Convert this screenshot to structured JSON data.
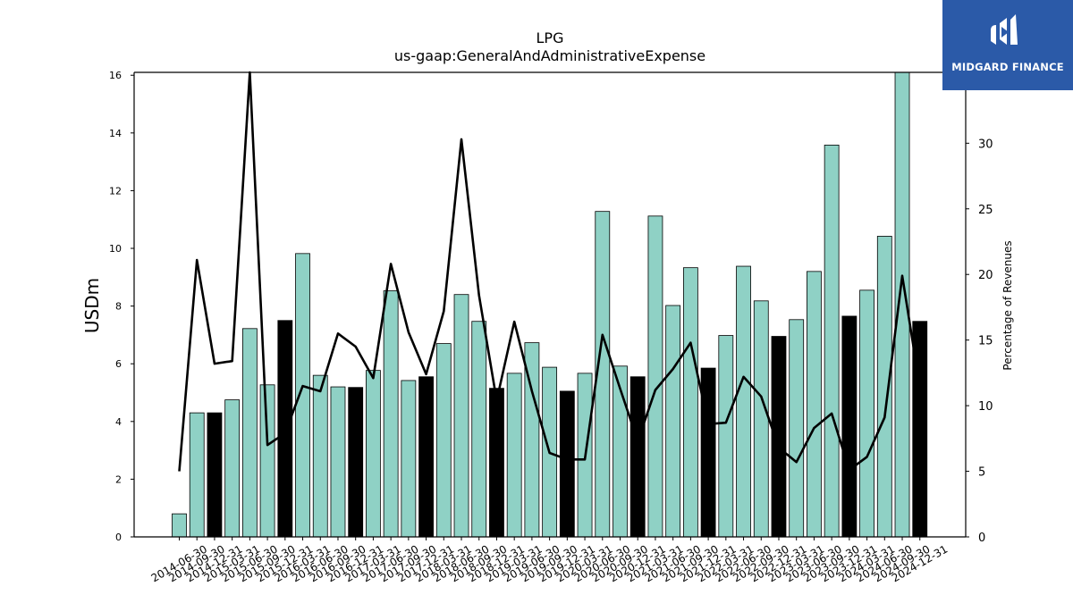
{
  "chart_data": {
    "type": "bar",
    "title": "LPG",
    "subtitle": "us-gaap:GeneralAndAdministrativeExpense",
    "ylabel": "USDm",
    "ylabel_right": "Percentage of Revenues",
    "ylim": [
      0,
      16.1
    ],
    "ylim_right": [
      0,
      35.4
    ],
    "yticks": [
      0,
      2,
      4,
      6,
      8,
      10,
      12,
      14,
      16
    ],
    "yticks_right": [
      0,
      5,
      10,
      15,
      20,
      25,
      30
    ],
    "categories": [
      "2014-06-30",
      "2014-09-30",
      "2014-12-31",
      "2015-03-31",
      "2015-06-30",
      "2015-09-30",
      "2015-12-31",
      "2016-03-31",
      "2016-06-30",
      "2016-09-30",
      "2016-12-31",
      "2017-03-31",
      "2017-06-30",
      "2017-09-30",
      "2017-12-31",
      "2018-03-31",
      "2018-06-30",
      "2018-09-30",
      "2018-12-31",
      "2019-03-31",
      "2019-06-30",
      "2019-09-30",
      "2019-12-31",
      "2020-03-31",
      "2020-06-30",
      "2020-09-30",
      "2020-12-31",
      "2021-03-31",
      "2021-06-30",
      "2021-09-30",
      "2021-12-31",
      "2022-03-31",
      "2022-06-30",
      "2022-09-30",
      "2022-12-31",
      "2023-03-31",
      "2023-06-30",
      "2023-09-30",
      "2023-12-31",
      "2024-03-31",
      "2024-06-30",
      "2024-09-30",
      "2024-12-31"
    ],
    "series": [
      {
        "type": "bar",
        "values": [
          0.8,
          4.3,
          4.3,
          4.75,
          7.22,
          5.27,
          7.5,
          9.82,
          5.6,
          5.2,
          5.18,
          5.77,
          8.53,
          5.42,
          5.55,
          6.7,
          8.4,
          7.47,
          5.15,
          5.67,
          6.73,
          5.88,
          5.05,
          5.67,
          11.28,
          5.92,
          5.55,
          11.12,
          8.02,
          9.33,
          5.85,
          6.98,
          9.38,
          8.18,
          6.95,
          7.53,
          9.2,
          13.58,
          7.65,
          8.55,
          10.42,
          16.1,
          7.47
        ],
        "highlight": [
          false,
          false,
          true,
          false,
          false,
          false,
          true,
          false,
          false,
          false,
          true,
          false,
          false,
          false,
          true,
          false,
          false,
          false,
          true,
          false,
          false,
          false,
          true,
          false,
          false,
          false,
          true,
          false,
          false,
          false,
          true,
          false,
          false,
          false,
          true,
          false,
          false,
          false,
          true,
          false,
          false,
          false,
          true
        ],
        "color": "#8fd1c5",
        "highlight_color": "#000000"
      },
      {
        "type": "line",
        "axis": "right",
        "color": "#000000",
        "values": [
          5.0,
          21.1,
          13.2,
          13.4,
          35.4,
          7.0,
          7.9,
          11.5,
          11.1,
          15.5,
          14.5,
          12.1,
          20.8,
          15.6,
          12.4,
          17.2,
          30.3,
          18.4,
          10.4,
          16.4,
          11.1,
          6.4,
          5.9,
          5.9,
          15.4,
          11.3,
          7.3,
          11.2,
          12.8,
          14.8,
          8.6,
          8.7,
          12.2,
          10.7,
          6.8,
          5.7,
          8.3,
          9.4,
          5.1,
          6.1,
          9.1,
          19.9,
          11.4
        ]
      }
    ]
  },
  "logo": {
    "text": "MIDGARD FINANCE",
    "mark_color": "#ffffff",
    "background": "#2b5aa8"
  }
}
